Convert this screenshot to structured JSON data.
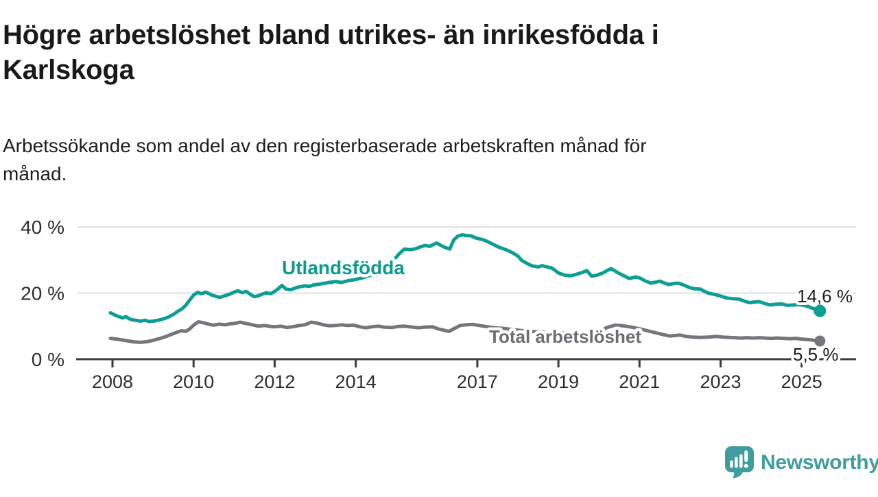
{
  "header": {
    "title_lines": [
      "Högre arbetslöshet bland utrikes- än inrikesfödda i",
      "Karlskoga"
    ],
    "subtitle_lines": [
      "Arbetssökande som andel av den registerbaserade arbetskraften månad för",
      "månad."
    ]
  },
  "chart_data": {
    "type": "line",
    "title": "Högre arbetslöshet bland utrikes- än inrikesfödda i Karlskoga",
    "subtitle": "Arbetssökande som andel av den registerbaserade arbetskraften månad för månad.",
    "x_axis": {
      "range": [
        2007.9,
        2025.6
      ],
      "ticks": [
        2008,
        2010,
        2012,
        2014,
        2017,
        2019,
        2021,
        2023,
        2025
      ],
      "tick_labels": [
        "2008",
        "2010",
        "2012",
        "2014",
        "2017",
        "2019",
        "2021",
        "2023",
        "2025"
      ]
    },
    "y_axis": {
      "range": [
        0,
        42
      ],
      "ticks": [
        0,
        20,
        40
      ],
      "tick_labels": [
        "0 %",
        "20 %",
        "40 %"
      ],
      "grid": true
    },
    "legend_position": "inline-labels",
    "series": [
      {
        "name": "Utlandsfödda",
        "color": "#0d9e93",
        "label_color": "#0d9a8f",
        "end_label": "14,6 %",
        "end_value": 14.6,
        "points": [
          [
            2007.95,
            14.0
          ],
          [
            2008.05,
            13.4
          ],
          [
            2008.15,
            12.9
          ],
          [
            2008.25,
            12.5
          ],
          [
            2008.33,
            12.9
          ],
          [
            2008.42,
            12.2
          ],
          [
            2008.5,
            11.9
          ],
          [
            2008.6,
            11.7
          ],
          [
            2008.7,
            11.5
          ],
          [
            2008.8,
            11.8
          ],
          [
            2008.9,
            11.4
          ],
          [
            2009.0,
            11.5
          ],
          [
            2009.1,
            11.7
          ],
          [
            2009.2,
            12.0
          ],
          [
            2009.35,
            12.6
          ],
          [
            2009.5,
            13.5
          ],
          [
            2009.6,
            14.4
          ],
          [
            2009.7,
            15.1
          ],
          [
            2009.8,
            16.2
          ],
          [
            2009.9,
            17.8
          ],
          [
            2010.0,
            19.4
          ],
          [
            2010.1,
            20.2
          ],
          [
            2010.2,
            19.8
          ],
          [
            2010.3,
            20.3
          ],
          [
            2010.45,
            19.4
          ],
          [
            2010.55,
            19.0
          ],
          [
            2010.65,
            18.7
          ],
          [
            2010.8,
            19.3
          ],
          [
            2010.9,
            19.7
          ],
          [
            2011.0,
            20.3
          ],
          [
            2011.1,
            20.7
          ],
          [
            2011.2,
            20.1
          ],
          [
            2011.3,
            20.5
          ],
          [
            2011.4,
            19.6
          ],
          [
            2011.5,
            18.9
          ],
          [
            2011.6,
            19.2
          ],
          [
            2011.7,
            19.7
          ],
          [
            2011.8,
            20.1
          ],
          [
            2011.9,
            19.8
          ],
          [
            2012.0,
            20.5
          ],
          [
            2012.1,
            21.4
          ],
          [
            2012.18,
            22.3
          ],
          [
            2012.28,
            21.2
          ],
          [
            2012.4,
            21.0
          ],
          [
            2012.5,
            21.5
          ],
          [
            2012.62,
            21.9
          ],
          [
            2012.75,
            22.2
          ],
          [
            2012.85,
            22.0
          ],
          [
            2012.95,
            22.4
          ],
          [
            2013.1,
            22.7
          ],
          [
            2013.3,
            23.1
          ],
          [
            2013.5,
            23.5
          ],
          [
            2013.65,
            23.2
          ],
          [
            2013.8,
            23.7
          ],
          [
            2014.0,
            24.1
          ],
          [
            2014.2,
            24.7
          ],
          [
            2014.4,
            25.5
          ],
          [
            2014.6,
            26.8
          ],
          [
            2014.8,
            28.4
          ],
          [
            2014.95,
            30.2
          ],
          [
            2015.1,
            32.2
          ],
          [
            2015.2,
            33.3
          ],
          [
            2015.35,
            33.1
          ],
          [
            2015.5,
            33.5
          ],
          [
            2015.6,
            34.0
          ],
          [
            2015.72,
            34.4
          ],
          [
            2015.82,
            34.1
          ],
          [
            2015.92,
            34.7
          ],
          [
            2016.0,
            35.1
          ],
          [
            2016.1,
            34.4
          ],
          [
            2016.22,
            33.7
          ],
          [
            2016.32,
            33.3
          ],
          [
            2016.42,
            36.1
          ],
          [
            2016.52,
            37.2
          ],
          [
            2016.62,
            37.6
          ],
          [
            2016.72,
            37.4
          ],
          [
            2016.85,
            37.3
          ],
          [
            2016.95,
            36.7
          ],
          [
            2017.05,
            36.4
          ],
          [
            2017.15,
            36.1
          ],
          [
            2017.28,
            35.4
          ],
          [
            2017.4,
            34.7
          ],
          [
            2017.5,
            34.0
          ],
          [
            2017.62,
            33.5
          ],
          [
            2017.75,
            32.9
          ],
          [
            2017.88,
            32.1
          ],
          [
            2018.0,
            31.2
          ],
          [
            2018.1,
            29.8
          ],
          [
            2018.22,
            29.0
          ],
          [
            2018.35,
            28.2
          ],
          [
            2018.5,
            27.9
          ],
          [
            2018.6,
            28.3
          ],
          [
            2018.72,
            27.9
          ],
          [
            2018.85,
            27.5
          ],
          [
            2019.0,
            26.1
          ],
          [
            2019.15,
            25.4
          ],
          [
            2019.3,
            25.2
          ],
          [
            2019.45,
            25.7
          ],
          [
            2019.6,
            26.3
          ],
          [
            2019.7,
            26.8
          ],
          [
            2019.82,
            25.1
          ],
          [
            2019.95,
            25.4
          ],
          [
            2020.1,
            26.1
          ],
          [
            2020.2,
            26.8
          ],
          [
            2020.3,
            27.4
          ],
          [
            2020.42,
            26.5
          ],
          [
            2020.52,
            25.8
          ],
          [
            2020.62,
            25.2
          ],
          [
            2020.75,
            24.4
          ],
          [
            2020.9,
            24.9
          ],
          [
            2021.0,
            24.6
          ],
          [
            2021.15,
            23.6
          ],
          [
            2021.28,
            23.0
          ],
          [
            2021.4,
            23.3
          ],
          [
            2021.5,
            23.6
          ],
          [
            2021.62,
            23.0
          ],
          [
            2021.72,
            22.6
          ],
          [
            2021.85,
            22.9
          ],
          [
            2021.95,
            23.0
          ],
          [
            2022.1,
            22.4
          ],
          [
            2022.22,
            21.7
          ],
          [
            2022.35,
            21.3
          ],
          [
            2022.5,
            21.2
          ],
          [
            2022.62,
            20.4
          ],
          [
            2022.72,
            19.9
          ],
          [
            2022.85,
            19.6
          ],
          [
            2023.0,
            19.1
          ],
          [
            2023.15,
            18.5
          ],
          [
            2023.3,
            18.3
          ],
          [
            2023.45,
            18.2
          ],
          [
            2023.6,
            17.5
          ],
          [
            2023.72,
            17.1
          ],
          [
            2023.85,
            17.3
          ],
          [
            2023.95,
            17.4
          ],
          [
            2024.1,
            16.8
          ],
          [
            2024.22,
            16.4
          ],
          [
            2024.35,
            16.6
          ],
          [
            2024.5,
            16.7
          ],
          [
            2024.65,
            16.3
          ],
          [
            2024.8,
            16.4
          ],
          [
            2024.95,
            16.5
          ],
          [
            2025.05,
            16.3
          ],
          [
            2025.15,
            16.0
          ],
          [
            2025.25,
            15.5
          ],
          [
            2025.35,
            15.0
          ],
          [
            2025.45,
            14.6
          ]
        ]
      },
      {
        "name": "Total arbetslöshet",
        "color": "#75757b",
        "label_color": "#6c6c72",
        "end_label": "5,5 %",
        "end_value": 5.5,
        "points": [
          [
            2007.95,
            6.3
          ],
          [
            2008.1,
            6.1
          ],
          [
            2008.25,
            5.8
          ],
          [
            2008.4,
            5.5
          ],
          [
            2008.55,
            5.2
          ],
          [
            2008.7,
            5.1
          ],
          [
            2008.85,
            5.3
          ],
          [
            2009.0,
            5.7
          ],
          [
            2009.15,
            6.2
          ],
          [
            2009.3,
            6.8
          ],
          [
            2009.45,
            7.5
          ],
          [
            2009.6,
            8.2
          ],
          [
            2009.7,
            8.6
          ],
          [
            2009.8,
            8.4
          ],
          [
            2009.9,
            9.1
          ],
          [
            2010.0,
            10.3
          ],
          [
            2010.12,
            11.3
          ],
          [
            2010.25,
            11.0
          ],
          [
            2010.4,
            10.5
          ],
          [
            2010.5,
            10.3
          ],
          [
            2010.62,
            10.6
          ],
          [
            2010.78,
            10.4
          ],
          [
            2010.9,
            10.7
          ],
          [
            2011.0,
            10.8
          ],
          [
            2011.15,
            11.2
          ],
          [
            2011.3,
            10.8
          ],
          [
            2011.45,
            10.4
          ],
          [
            2011.6,
            10.0
          ],
          [
            2011.75,
            10.2
          ],
          [
            2011.9,
            9.9
          ],
          [
            2012.0,
            9.8
          ],
          [
            2012.15,
            10.0
          ],
          [
            2012.3,
            9.6
          ],
          [
            2012.45,
            9.8
          ],
          [
            2012.6,
            10.2
          ],
          [
            2012.75,
            10.4
          ],
          [
            2012.9,
            11.2
          ],
          [
            2013.05,
            10.9
          ],
          [
            2013.2,
            10.4
          ],
          [
            2013.35,
            10.1
          ],
          [
            2013.5,
            10.2
          ],
          [
            2013.65,
            10.4
          ],
          [
            2013.8,
            10.2
          ],
          [
            2013.95,
            10.3
          ],
          [
            2014.1,
            9.8
          ],
          [
            2014.25,
            9.5
          ],
          [
            2014.4,
            9.8
          ],
          [
            2014.55,
            10.0
          ],
          [
            2014.7,
            9.7
          ],
          [
            2014.9,
            9.6
          ],
          [
            2015.05,
            9.9
          ],
          [
            2015.2,
            10.0
          ],
          [
            2015.4,
            9.7
          ],
          [
            2015.55,
            9.5
          ],
          [
            2015.7,
            9.7
          ],
          [
            2015.9,
            9.8
          ],
          [
            2016.05,
            9.1
          ],
          [
            2016.2,
            8.7
          ],
          [
            2016.3,
            8.4
          ],
          [
            2016.45,
            9.4
          ],
          [
            2016.58,
            10.2
          ],
          [
            2016.72,
            10.4
          ],
          [
            2016.9,
            10.5
          ],
          [
            2017.05,
            10.2
          ],
          [
            2017.25,
            9.8
          ],
          [
            2017.45,
            9.5
          ],
          [
            2017.65,
            9.3
          ],
          [
            2017.85,
            9.0
          ],
          [
            2018.05,
            8.7
          ],
          [
            2018.3,
            8.4
          ],
          [
            2018.6,
            8.2
          ],
          [
            2018.9,
            8.0
          ],
          [
            2019.2,
            7.9
          ],
          [
            2019.5,
            7.7
          ],
          [
            2019.8,
            7.8
          ],
          [
            2020.0,
            8.3
          ],
          [
            2020.2,
            9.6
          ],
          [
            2020.4,
            10.3
          ],
          [
            2020.6,
            10.1
          ],
          [
            2020.8,
            9.7
          ],
          [
            2021.0,
            9.2
          ],
          [
            2021.2,
            8.6
          ],
          [
            2021.4,
            8.0
          ],
          [
            2021.6,
            7.4
          ],
          [
            2021.75,
            7.0
          ],
          [
            2021.9,
            7.2
          ],
          [
            2022.0,
            7.3
          ],
          [
            2022.15,
            6.9
          ],
          [
            2022.3,
            6.7
          ],
          [
            2022.5,
            6.6
          ],
          [
            2022.7,
            6.7
          ],
          [
            2022.9,
            6.9
          ],
          [
            2023.05,
            6.7
          ],
          [
            2023.2,
            6.6
          ],
          [
            2023.35,
            6.5
          ],
          [
            2023.5,
            6.4
          ],
          [
            2023.65,
            6.5
          ],
          [
            2023.8,
            6.4
          ],
          [
            2023.95,
            6.5
          ],
          [
            2024.1,
            6.4
          ],
          [
            2024.25,
            6.3
          ],
          [
            2024.4,
            6.4
          ],
          [
            2024.55,
            6.3
          ],
          [
            2024.7,
            6.2
          ],
          [
            2024.85,
            6.3
          ],
          [
            2025.0,
            6.1
          ],
          [
            2025.1,
            6.0
          ],
          [
            2025.2,
            5.9
          ],
          [
            2025.3,
            5.7
          ],
          [
            2025.45,
            5.5
          ]
        ]
      }
    ]
  },
  "branding": {
    "logo_text": "Newsworthy",
    "logo_color": "#3f9d9d",
    "logo_icon": "speech-bubble-bar-chart-icon"
  },
  "colors": {
    "grid": "#e0e0e0",
    "axis": "#3a3a3a",
    "axis_text": "#2d2d2d",
    "end_label_text": "#1f1f1f"
  }
}
